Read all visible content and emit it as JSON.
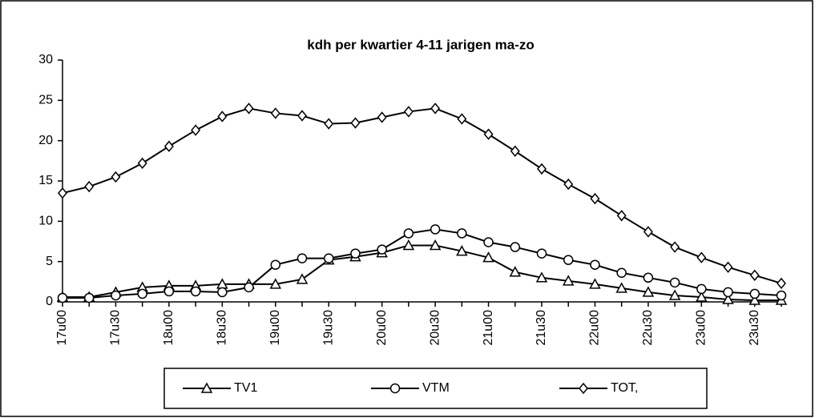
{
  "chart_data": {
    "type": "line",
    "title": "kdh per kwartier 4-11 jarigen ma-zo",
    "categories": [
      "17u00",
      null,
      "17u30",
      null,
      "18u00",
      null,
      "18u30",
      null,
      "19u00",
      null,
      "19u30",
      null,
      "20u00",
      null,
      "20u30",
      null,
      "21u00",
      null,
      "21u30",
      null,
      "22u00",
      null,
      "22u30",
      null,
      "23u00",
      null,
      "23u30",
      null
    ],
    "series": [
      {
        "name": "TV1",
        "color": "#000000",
        "marker": "triangle",
        "values": [
          0.6,
          0.6,
          1.2,
          1.8,
          2.0,
          2.0,
          2.2,
          2.2,
          2.2,
          2.8,
          5.2,
          5.6,
          6.1,
          7.0,
          7.0,
          6.3,
          5.5,
          3.7,
          3.0,
          2.6,
          2.2,
          1.7,
          1.2,
          0.8,
          0.6,
          0.3,
          0.2,
          0.2
        ]
      },
      {
        "name": "VTM",
        "color": "#000000",
        "marker": "circle",
        "values": [
          0.5,
          0.5,
          0.8,
          1.0,
          1.3,
          1.3,
          1.2,
          1.8,
          4.6,
          5.4,
          5.4,
          6.0,
          6.5,
          8.5,
          9.0,
          8.5,
          7.4,
          6.8,
          6.0,
          5.2,
          4.6,
          3.6,
          3.0,
          2.4,
          1.6,
          1.2,
          1.0,
          0.8
        ]
      },
      {
        "name": "TOT,",
        "color": "#000000",
        "marker": "diamond",
        "values": [
          13.5,
          14.3,
          15.5,
          17.2,
          19.3,
          21.3,
          23.0,
          24.0,
          23.4,
          23.1,
          22.1,
          22.2,
          22.9,
          23.6,
          24.0,
          22.7,
          20.8,
          18.7,
          16.5,
          14.6,
          12.8,
          10.7,
          8.7,
          6.8,
          5.5,
          4.3,
          3.3,
          2.3
        ]
      }
    ],
    "ylim": [
      0,
      30
    ],
    "yticks": [
      0,
      5,
      10,
      15,
      20,
      25,
      30
    ],
    "grid": false
  }
}
